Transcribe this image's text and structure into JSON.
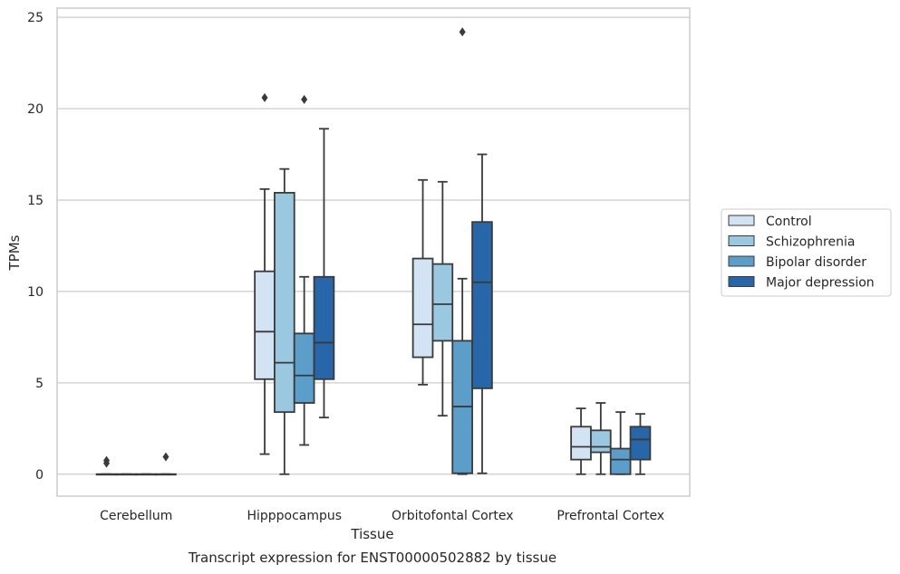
{
  "chart_data": {
    "type": "box",
    "title": "Transcript expression for ENST00000502882 by tissue",
    "xlabel": "Tissue",
    "ylabel": "TPMs",
    "ylim": [
      -1.2,
      25.5
    ],
    "yticks": [
      0,
      5,
      10,
      15,
      20,
      25
    ],
    "grid": true,
    "legend_position": "right",
    "categories": [
      "Cerebellum",
      "Hipppocampus",
      "Orbitofontal Cortex",
      "Prefrontal Cortex"
    ],
    "series": [
      {
        "name": "Control",
        "color": "#d2e3f3",
        "boxes": [
          {
            "whislo": 0,
            "q1": 0,
            "med": 0,
            "q3": 0,
            "whishi": 0,
            "fliers": [
              0.6,
              0.75
            ]
          },
          {
            "whislo": 1.1,
            "q1": 5.2,
            "med": 7.8,
            "q3": 11.1,
            "whishi": 15.6,
            "fliers": [
              20.6
            ]
          },
          {
            "whislo": 4.9,
            "q1": 6.4,
            "med": 8.2,
            "q3": 11.8,
            "whishi": 16.1,
            "fliers": []
          },
          {
            "whislo": 0,
            "q1": 0.8,
            "med": 1.5,
            "q3": 2.6,
            "whishi": 3.6,
            "fliers": []
          }
        ]
      },
      {
        "name": "Schizophrenia",
        "color": "#9ac8e0",
        "boxes": [
          {
            "whislo": 0,
            "q1": 0,
            "med": 0,
            "q3": 0,
            "whishi": 0,
            "fliers": []
          },
          {
            "whislo": 0,
            "q1": 3.4,
            "med": 6.1,
            "q3": 15.4,
            "whishi": 16.7,
            "fliers": []
          },
          {
            "whislo": 3.2,
            "q1": 7.3,
            "med": 9.3,
            "q3": 11.5,
            "whishi": 16.0,
            "fliers": []
          },
          {
            "whislo": 0,
            "q1": 1.2,
            "med": 1.5,
            "q3": 2.4,
            "whishi": 3.9,
            "fliers": []
          }
        ]
      },
      {
        "name": "Bipolar disorder",
        "color": "#5a9ec9",
        "boxes": [
          {
            "whislo": 0,
            "q1": 0,
            "med": 0,
            "q3": 0,
            "whishi": 0,
            "fliers": []
          },
          {
            "whislo": 1.6,
            "q1": 3.9,
            "med": 5.4,
            "q3": 7.7,
            "whishi": 10.8,
            "fliers": [
              20.5
            ]
          },
          {
            "whislo": 0,
            "q1": 0.05,
            "med": 3.7,
            "q3": 7.3,
            "whishi": 10.7,
            "fliers": [
              24.2
            ]
          },
          {
            "whislo": 0,
            "q1": 0,
            "med": 0.8,
            "q3": 1.4,
            "whishi": 3.4,
            "fliers": []
          }
        ]
      },
      {
        "name": "Major depression",
        "color": "#2666a9",
        "boxes": [
          {
            "whislo": 0,
            "q1": 0,
            "med": 0,
            "q3": 0,
            "whishi": 0,
            "fliers": [
              0.95
            ]
          },
          {
            "whislo": 3.1,
            "q1": 5.2,
            "med": 7.2,
            "q3": 10.8,
            "whishi": 18.9,
            "fliers": []
          },
          {
            "whislo": 0.05,
            "q1": 4.7,
            "med": 10.5,
            "q3": 13.8,
            "whishi": 17.5,
            "fliers": []
          },
          {
            "whislo": 0,
            "q1": 0.8,
            "med": 1.9,
            "q3": 2.6,
            "whishi": 3.3,
            "fliers": []
          }
        ]
      }
    ]
  }
}
